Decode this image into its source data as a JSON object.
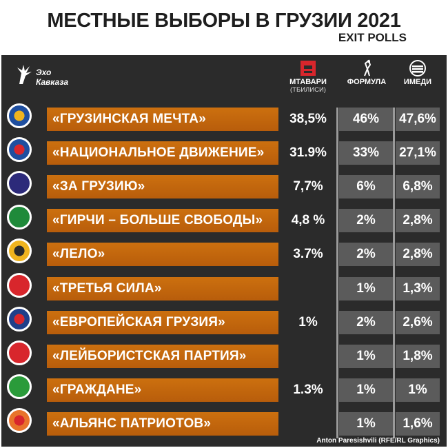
{
  "header": {
    "title": "МЕСТНЫЕ ВЫБОРЫ В ГРУЗИИ 2021",
    "subtitle": "EXIT POLLS"
  },
  "logo": {
    "line1": "Эхо",
    "line2": "Кавказа"
  },
  "columns": [
    {
      "name": "МТАВАРИ",
      "sub": "(ТБИЛИСИ)"
    },
    {
      "name": "ФОРМУЛА",
      "sub": ""
    },
    {
      "name": "ИМЕДИ",
      "sub": ""
    }
  ],
  "credit": "Anton Paresishvili (RFE/RL Graphics)",
  "colors": {
    "bar": "#c0660e",
    "cell": "#5b5b5b",
    "panel": "#2b2b2b",
    "separator": "#9a9a9a"
  },
  "chart_data": {
    "type": "table",
    "title": "МЕСТНЫЕ ВЫБОРЫ В ГРУЗИИ 2021",
    "subtitle": "EXIT POLLS",
    "columns": [
      "МТАВАРИ (ТБИЛИСИ)",
      "ФОРМУЛА",
      "ИМЕДИ"
    ],
    "rows": [
      {
        "party": "«ГРУЗИНСКАЯ МЕЧТА»",
        "values": [
          "38,5%",
          "46%",
          "47,6%"
        ]
      },
      {
        "party": "«НАЦИОНАЛЬНОЕ ДВИЖЕНИЕ»",
        "values": [
          "31.9%",
          "33%",
          "27,1%"
        ]
      },
      {
        "party": "«ЗА ГРУЗИЮ»",
        "values": [
          "7,7%",
          "6%",
          "6,8%"
        ]
      },
      {
        "party": "«ГИРЧИ – БОЛЬШЕ СВОБОДЫ»",
        "values": [
          "4,8 %",
          "2%",
          "2,8%"
        ]
      },
      {
        "party": "«ЛЕЛО»",
        "values": [
          "3.7%",
          "2%",
          "2,8%"
        ]
      },
      {
        "party": "«ТРЕТЬЯ СИЛА»",
        "values": [
          "",
          "1%",
          "1,3%"
        ]
      },
      {
        "party": "«ЕВРОПЕЙСКАЯ ГРУЗИЯ»",
        "values": [
          "1%",
          "2%",
          "2,6%"
        ]
      },
      {
        "party": "«ЛЕЙБОРИСТСКАЯ ПАРТИЯ»",
        "values": [
          "",
          "1%",
          "1,8%"
        ]
      },
      {
        "party": "«ГРАЖДАНЕ»",
        "values": [
          "1.3%",
          "1%",
          "1%"
        ]
      },
      {
        "party": "«АЛЬЯНС ПАТРИОТОВ»",
        "values": [
          "",
          "1%",
          "1,6%"
        ]
      }
    ]
  }
}
